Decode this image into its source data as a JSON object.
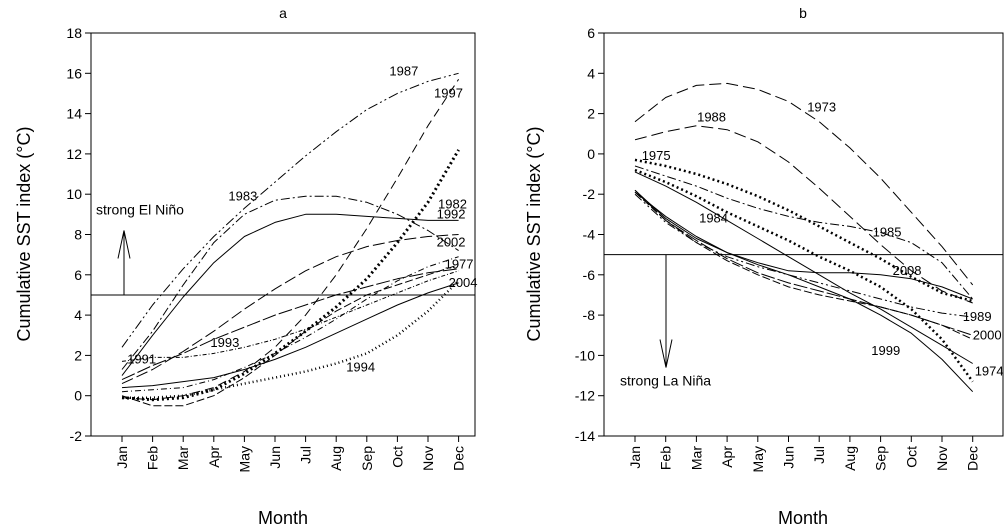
{
  "chart_data": [
    {
      "type": "line",
      "title": "a",
      "xlabel": "Month",
      "ylabel": "Cumulative SST index (°C)",
      "categories": [
        "Jan",
        "Feb",
        "Mar",
        "Apr",
        "May",
        "Jun",
        "Jul",
        "Aug",
        "Sep",
        "Oct",
        "Nov",
        "Dec"
      ],
      "ylim": [
        -2,
        18
      ],
      "yticks": [
        -2,
        0,
        2,
        4,
        6,
        8,
        10,
        12,
        14,
        16,
        18
      ],
      "threshold": 5,
      "annotation": {
        "text": "strong El Niño",
        "arrow_from": 5,
        "arrow_to": 8.2,
        "month_index": 0
      },
      "series": [
        {
          "name": "1987",
          "dash": "10,3,2,3,2,3",
          "width": 1,
          "values": [
            2.4,
            4.5,
            6.3,
            7.9,
            9.3,
            10.6,
            11.9,
            13.1,
            14.2,
            15.0,
            15.6,
            16.0
          ]
        },
        {
          "name": "1997",
          "dash": "9,5",
          "width": 1,
          "values": [
            -0.1,
            -0.2,
            0.0,
            0.4,
            1.2,
            2.4,
            4.0,
            6.0,
            8.3,
            10.8,
            13.4,
            15.7
          ]
        },
        {
          "name": "1982",
          "dash": "2,3",
          "width": 3,
          "values": [
            -0.1,
            -0.2,
            -0.1,
            0.3,
            1.1,
            2.1,
            3.2,
            4.4,
            5.8,
            7.6,
            9.6,
            12.2
          ]
        },
        {
          "name": "1983",
          "dash": "9,3,2,3",
          "width": 1,
          "values": [
            1.3,
            3.2,
            5.5,
            7.6,
            9.0,
            9.7,
            9.9,
            9.9,
            9.6,
            9.0,
            8.2,
            7.2
          ]
        },
        {
          "name": "1992",
          "dash": "none",
          "width": 1,
          "values": [
            1.0,
            3.0,
            4.9,
            6.6,
            7.9,
            8.6,
            9.0,
            9.0,
            8.9,
            8.8,
            8.7,
            8.7
          ]
        },
        {
          "name": "2002",
          "dash": "12,4",
          "width": 1,
          "values": [
            0.6,
            1.3,
            2.2,
            3.2,
            4.3,
            5.3,
            6.2,
            6.9,
            7.4,
            7.7,
            7.9,
            8.0
          ]
        },
        {
          "name": "1977",
          "dash": "6,3,1,3",
          "width": 1,
          "values": [
            0.2,
            0.3,
            0.4,
            0.8,
            1.4,
            2.1,
            2.9,
            3.8,
            4.8,
            5.7,
            6.4,
            6.9
          ]
        },
        {
          "name": "1993",
          "dash": "14,3",
          "width": 1,
          "values": [
            0.8,
            1.5,
            2.1,
            2.8,
            3.4,
            4.0,
            4.5,
            5.0,
            5.4,
            5.8,
            6.1,
            6.3
          ]
        },
        {
          "name": "1991",
          "dash": "4,2,1,2",
          "width": 1,
          "values": [
            1.7,
            1.9,
            1.9,
            2.1,
            2.4,
            2.8,
            3.3,
            3.9,
            4.5,
            5.1,
            5.7,
            6.2
          ]
        },
        {
          "name": "2004",
          "dash": "none",
          "width": 1,
          "values": [
            0.4,
            0.5,
            0.7,
            0.9,
            1.3,
            1.8,
            2.4,
            3.1,
            3.8,
            4.5,
            5.1,
            5.6
          ]
        },
        {
          "name": "1994",
          "dash": "1,3",
          "width": 2.5,
          "values": [
            -0.1,
            -0.1,
            0.0,
            0.3,
            0.6,
            0.9,
            1.2,
            1.6,
            2.1,
            3.0,
            4.2,
            5.7
          ]
        },
        {
          "name": "",
          "dash": "8,3",
          "width": 1,
          "values": [
            0.0,
            -0.5,
            -0.5,
            0.0,
            0.9,
            2.0,
            3.2,
            4.2,
            5.0,
            5.5,
            6.0,
            6.5
          ]
        }
      ]
    },
    {
      "type": "line",
      "title": "b",
      "xlabel": "Month",
      "ylabel": "Cumulative SST index (°C)",
      "categories": [
        "Jan",
        "Feb",
        "Mar",
        "Apr",
        "May",
        "Jun",
        "Jul",
        "Aug",
        "Sep",
        "Oct",
        "Nov",
        "Dec"
      ],
      "ylim": [
        -14,
        6
      ],
      "yticks": [
        -14,
        -12,
        -10,
        -8,
        -6,
        -4,
        -2,
        0,
        2,
        4,
        6
      ],
      "threshold": -5,
      "annotation": {
        "text": "strong La Niña",
        "arrow_from": -5,
        "arrow_to": -10.6,
        "month_index": 1
      },
      "series": [
        {
          "name": "1973",
          "dash": "12,5",
          "width": 1,
          "values": [
            1.6,
            2.8,
            3.4,
            3.5,
            3.2,
            2.6,
            1.6,
            0.3,
            -1.2,
            -2.9,
            -4.6,
            -6.5
          ]
        },
        {
          "name": "1988",
          "dash": "12,5",
          "width": 1,
          "values": [
            0.7,
            1.1,
            1.4,
            1.2,
            0.6,
            -0.4,
            -1.7,
            -3.1,
            -4.5,
            -5.8,
            -6.8,
            -7.4
          ]
        },
        {
          "name": "1975",
          "dash": "2,3",
          "width": 2.5,
          "values": [
            -0.3,
            -0.6,
            -1.0,
            -1.5,
            -2.1,
            -2.8,
            -3.6,
            -4.4,
            -5.2,
            -6.1,
            -6.9,
            -7.3
          ]
        },
        {
          "name": "1984",
          "dash": "2,3",
          "width": 2.5,
          "values": [
            -0.8,
            -1.4,
            -2.1,
            -2.9,
            -3.6,
            -4.3,
            -5.1,
            -5.8,
            -6.6,
            -7.7,
            -9.2,
            -11.3
          ]
        },
        {
          "name": "1985",
          "dash": "9,3,2,3",
          "width": 1,
          "values": [
            -0.6,
            -1.1,
            -1.6,
            -2.2,
            -2.7,
            -3.1,
            -3.4,
            -3.6,
            -3.9,
            -4.4,
            -5.4,
            -7.2
          ]
        },
        {
          "name": "2008",
          "dash": "none",
          "width": 1,
          "values": [
            -1.9,
            -3.1,
            -4.1,
            -4.9,
            -5.4,
            -5.8,
            -5.9,
            -5.9,
            -6.0,
            -6.2,
            -6.6,
            -7.2
          ]
        },
        {
          "name": "1989",
          "dash": "9,3,2,3,2,3",
          "width": 1,
          "values": [
            -2.0,
            -3.4,
            -4.4,
            -5.1,
            -5.6,
            -6.0,
            -6.4,
            -6.8,
            -7.2,
            -7.6,
            -7.9,
            -8.1
          ]
        },
        {
          "name": "2000",
          "dash": "14,3",
          "width": 1,
          "values": [
            -1.8,
            -3.3,
            -4.3,
            -5.2,
            -5.9,
            -6.4,
            -6.8,
            -7.2,
            -7.6,
            -8.0,
            -8.5,
            -9.0
          ]
        },
        {
          "name": "1974",
          "dash": "none",
          "width": 1,
          "values": [
            -0.9,
            -1.6,
            -2.4,
            -3.3,
            -4.2,
            -5.1,
            -6.0,
            -6.9,
            -7.7,
            -8.6,
            -9.5,
            -10.4
          ]
        },
        {
          "name": "1999",
          "dash": "none",
          "width": 1,
          "values": [
            -1.8,
            -3.2,
            -4.2,
            -4.9,
            -5.5,
            -6.0,
            -6.6,
            -7.2,
            -8.0,
            -8.9,
            -10.2,
            -11.8
          ]
        },
        {
          "name": "",
          "dash": "8,3",
          "width": 1,
          "values": [
            -1.9,
            -3.3,
            -4.4,
            -5.3,
            -6.0,
            -6.6,
            -7.0,
            -7.3,
            -7.6,
            -8.0,
            -8.5,
            -9.2
          ]
        }
      ]
    }
  ]
}
